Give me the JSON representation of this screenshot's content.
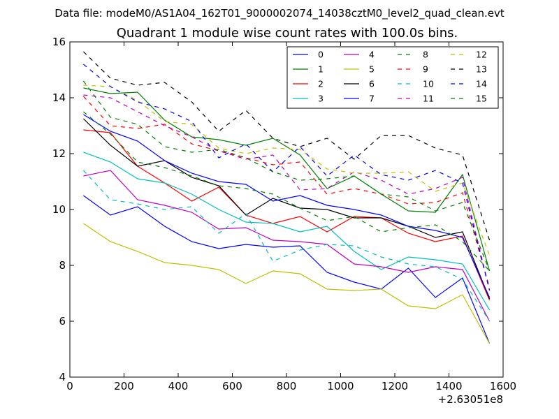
{
  "chart_data": {
    "type": "line",
    "suptitle": "Data file: modeM0/AS1A04_162T01_9000002074_14038cztM0_level2_quad_clean.evt",
    "title": "Quadrant 1 module wise count rates with 100.0s bins.",
    "xlabel": "",
    "ylabel": "",
    "x_offset_label": "+2.63051e8",
    "xlim": [
      0,
      1600
    ],
    "ylim": [
      4,
      16
    ],
    "xticks": [
      0,
      200,
      400,
      600,
      800,
      1000,
      1200,
      1400,
      1600
    ],
    "yticks": [
      4,
      6,
      8,
      10,
      12,
      14,
      16
    ],
    "grid": false,
    "legend_position": "top-right",
    "x": [
      50,
      150,
      250,
      350,
      450,
      550,
      650,
      750,
      850,
      950,
      1050,
      1150,
      1250,
      1350,
      1450,
      1550
    ],
    "series": [
      {
        "name": "0",
        "color": "#0000ff",
        "dash": "solid",
        "values": [
          10.5,
          9.8,
          10.1,
          9.4,
          8.85,
          8.6,
          8.75,
          8.65,
          8.7,
          7.75,
          7.4,
          7.15,
          7.9,
          6.85,
          7.55,
          5.2
        ]
      },
      {
        "name": "1",
        "color": "#008000",
        "dash": "solid",
        "values": [
          14.35,
          14.15,
          14.2,
          13.2,
          12.6,
          12.5,
          12.3,
          12.55,
          11.95,
          10.75,
          11.2,
          10.55,
          9.95,
          9.9,
          11.25,
          7.8
        ]
      },
      {
        "name": "2",
        "color": "#ff0000",
        "dash": "solid",
        "values": [
          12.85,
          12.75,
          11.55,
          10.95,
          10.3,
          10.8,
          9.8,
          9.5,
          9.75,
          9.2,
          9.75,
          9.7,
          9.15,
          8.85,
          9.05,
          6.75
        ]
      },
      {
        "name": "3",
        "color": "#00bfbf",
        "dash": "solid",
        "values": [
          12.05,
          11.7,
          11.1,
          10.95,
          10.55,
          10.0,
          9.55,
          9.5,
          9.2,
          9.4,
          8.5,
          7.85,
          8.3,
          8.2,
          8.05,
          6.4
        ]
      },
      {
        "name": "4",
        "color": "#bf00bf",
        "dash": "solid",
        "values": [
          11.2,
          11.4,
          10.35,
          10.15,
          9.9,
          9.3,
          9.35,
          8.9,
          8.85,
          8.75,
          8.05,
          7.95,
          7.75,
          7.95,
          7.85,
          6.0
        ]
      },
      {
        "name": "5",
        "color": "#bfbf00",
        "dash": "solid",
        "values": [
          9.5,
          8.85,
          8.5,
          8.1,
          8.0,
          7.85,
          7.35,
          7.8,
          7.7,
          7.15,
          7.1,
          7.15,
          6.55,
          6.45,
          6.95,
          5.2
        ]
      },
      {
        "name": "6",
        "color": "#000000",
        "dash": "solid",
        "values": [
          13.25,
          12.3,
          11.55,
          11.75,
          11.15,
          10.85,
          9.8,
          10.4,
          10.05,
          10.0,
          9.7,
          9.7,
          9.4,
          9.0,
          9.2,
          6.8
        ]
      },
      {
        "name": "7",
        "color": "#0000ff",
        "dash": "solid",
        "values": [
          13.4,
          12.8,
          12.45,
          11.75,
          11.3,
          11.0,
          10.9,
          10.3,
          10.5,
          10.15,
          10.0,
          9.8,
          9.4,
          9.25,
          9.0,
          6.85
        ]
      },
      {
        "name": "8",
        "color": "#008000",
        "dash": "dashed",
        "values": [
          13.5,
          12.7,
          11.7,
          11.5,
          11.2,
          10.85,
          10.75,
          10.55,
          10.05,
          9.6,
          9.75,
          9.2,
          9.35,
          9.45,
          8.85,
          7.8
        ]
      },
      {
        "name": "9",
        "color": "#ff0000",
        "dash": "dashed",
        "values": [
          14.05,
          13.0,
          12.9,
          13.05,
          12.35,
          12.1,
          11.85,
          11.6,
          11.7,
          10.55,
          10.75,
          10.55,
          10.2,
          10.25,
          10.6,
          7.2
        ]
      },
      {
        "name": "10",
        "color": "#00bfbf",
        "dash": "dashed",
        "values": [
          11.4,
          10.35,
          10.2,
          10.0,
          10.1,
          9.15,
          9.85,
          8.15,
          8.55,
          8.75,
          8.7,
          8.3,
          8.05,
          7.95,
          7.5,
          6.0
        ]
      },
      {
        "name": "11",
        "color": "#bf00bf",
        "dash": "dashed",
        "values": [
          14.1,
          14.0,
          13.5,
          13.0,
          12.6,
          12.1,
          11.8,
          11.95,
          10.7,
          10.75,
          11.35,
          11.05,
          10.55,
          10.75,
          11.15,
          7.1
        ]
      },
      {
        "name": "12",
        "color": "#bfbf00",
        "dash": "dashed",
        "values": [
          14.45,
          14.4,
          13.9,
          13.15,
          13.05,
          12.2,
          12.0,
          12.2,
          12.15,
          11.45,
          11.3,
          11.3,
          11.35,
          10.65,
          10.95,
          8.35
        ]
      },
      {
        "name": "13",
        "color": "#000000",
        "dash": "dashed",
        "values": [
          15.65,
          14.7,
          14.45,
          14.55,
          13.85,
          12.8,
          13.55,
          12.55,
          12.25,
          12.55,
          11.8,
          12.65,
          12.65,
          12.2,
          11.95,
          8.9
        ]
      },
      {
        "name": "14",
        "color": "#0000ff",
        "dash": "dashed",
        "values": [
          15.2,
          14.4,
          13.85,
          13.6,
          13.15,
          11.85,
          12.35,
          11.35,
          12.25,
          11.2,
          11.95,
          11.25,
          11.05,
          11.4,
          10.95,
          7.1
        ]
      },
      {
        "name": "15",
        "color": "#008000",
        "dash": "dashed",
        "values": [
          14.6,
          13.3,
          13.05,
          12.25,
          12.05,
          12.15,
          11.85,
          11.35,
          11.05,
          11.1,
          11.2,
          10.55,
          10.45,
          9.95,
          10.25,
          7.8
        ]
      }
    ]
  }
}
